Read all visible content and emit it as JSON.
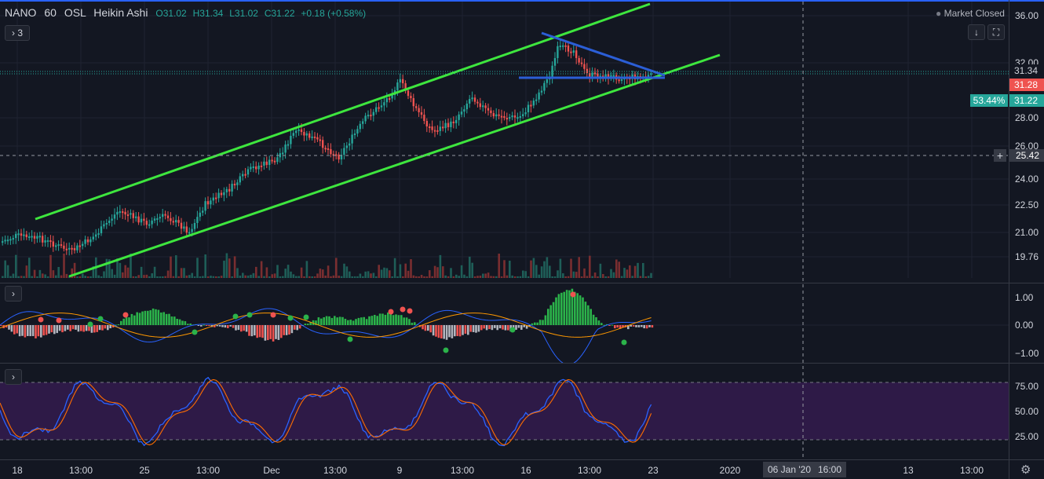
{
  "legend": {
    "symbol": "NANO",
    "interval": "60",
    "exchange": "OSL",
    "chart_style": "Heikin Ashi",
    "open": "O31.02",
    "high": "H31.34",
    "low": "L31.02",
    "close": "C31.22",
    "change": "+0.18 (+0.58%)"
  },
  "indicators_toggle": {
    "label": "3"
  },
  "market_status": "Market Closed",
  "price_axis": {
    "labels": [
      "36.00",
      "32.00",
      "28.00",
      "26.00",
      "24.00",
      "22.50",
      "21.00",
      "19.76"
    ],
    "tags": {
      "high": "31.34",
      "last": "31.28",
      "close": "31.22",
      "crosshair": "25.42",
      "percent": "53.44%"
    }
  },
  "macd_axis": {
    "labels": [
      "1.00",
      "0.00",
      "−1.00"
    ]
  },
  "stoch_axis": {
    "labels": [
      "75.00",
      "50.00",
      "25.00"
    ]
  },
  "time_axis": {
    "labels": [
      "18",
      "13:00",
      "25",
      "13:00",
      "Dec",
      "13:00",
      "9",
      "13:00",
      "16",
      "13:00",
      "23",
      "2020",
      "13",
      "13:00"
    ],
    "crosshair_date": "06 Jan '20",
    "crosshair_time": "16:00"
  },
  "colors": {
    "background": "#131722",
    "up": "#26a69a",
    "down": "#ef5350",
    "channel": "#3ee63e",
    "triangle": "#2b5ed6",
    "stoch_band": "#2e1a47"
  },
  "icons": [
    "chevron-right-icon",
    "scroll-down-icon",
    "fullscreen-icon",
    "settings-gear-icon"
  ]
}
